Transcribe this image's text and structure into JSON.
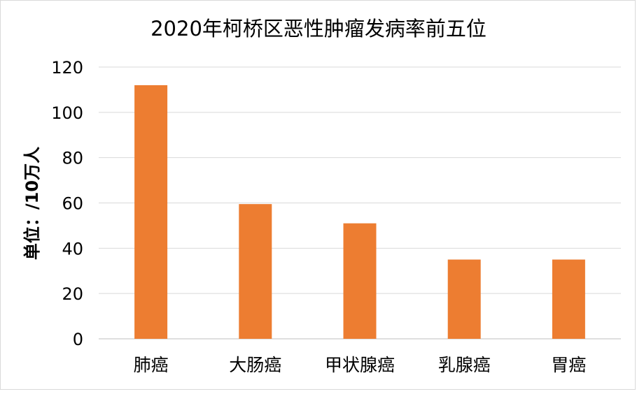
{
  "chart_data": {
    "type": "bar",
    "title": "2020年柯桥区恶性肿瘤发病率前五位",
    "xlabel": "",
    "ylabel": "单位：/10万人",
    "categories": [
      "肺癌",
      "大肠癌",
      "甲状腺癌",
      "乳腺癌",
      "胃癌"
    ],
    "values": [
      112,
      59.5,
      51,
      35,
      35
    ],
    "ylim": [
      0,
      120
    ],
    "yticks": [
      0,
      20,
      40,
      60,
      80,
      100,
      120
    ],
    "grid": true,
    "legend": "none",
    "bar_color": "#ed7d31",
    "grid_color": "#d9d9d9",
    "axis_color": "#bfbfbf",
    "text_color": "#000000"
  }
}
